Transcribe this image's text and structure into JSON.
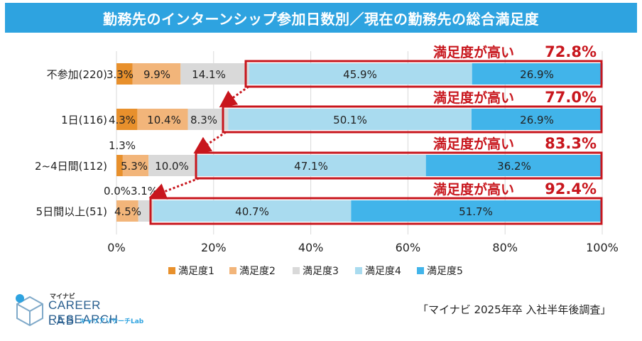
{
  "chart_data": {
    "type": "bar",
    "orientation": "horizontal",
    "stacked": "percent",
    "title": "勤務先のインターンシップ参加日数別／現在の勤務先の総合満足度",
    "categories": [
      "不参加(220)",
      "1日(116)",
      "2~4日間(112)",
      "5日間以上(51)"
    ],
    "series": [
      {
        "name": "満足度1",
        "color": "#e8902c",
        "values": [
          3.3,
          4.3,
          1.3,
          0.0
        ],
        "labels": [
          "3.3%",
          "4.3%",
          "1.3%",
          "0.0%"
        ]
      },
      {
        "name": "満足度2",
        "color": "#f2b57a",
        "values": [
          9.9,
          10.4,
          5.3,
          4.5
        ],
        "labels": [
          "9.9%",
          "10.4%",
          "5.3%",
          "4.5%"
        ]
      },
      {
        "name": "満足度3",
        "color": "#d9d9d9",
        "values": [
          14.1,
          8.3,
          10.0,
          3.1
        ],
        "labels": [
          "14.1%",
          "8.3%",
          "10.0%",
          "3.1%"
        ]
      },
      {
        "name": "満足度4",
        "color": "#a9dbef",
        "values": [
          45.9,
          50.1,
          47.1,
          40.7
        ],
        "labels": [
          "45.9%",
          "50.1%",
          "47.1%",
          "40.7%"
        ]
      },
      {
        "name": "満足度5",
        "color": "#41b4ea",
        "values": [
          26.9,
          26.9,
          36.2,
          51.7
        ],
        "labels": [
          "26.9%",
          "26.9%",
          "36.2%",
          "51.7%"
        ]
      }
    ],
    "highlights": [
      {
        "label": "満足度が高い",
        "value": "72.8%"
      },
      {
        "label": "満足度が高い",
        "value": "77.0%"
      },
      {
        "label": "満足度が高い",
        "value": "83.3%"
      },
      {
        "label": "満足度が高い",
        "value": "92.4%"
      }
    ],
    "xlim": [
      0,
      100
    ],
    "xticks": [
      "0%",
      "20%",
      "40%",
      "60%",
      "80%",
      "100%"
    ],
    "gridlines": true,
    "legend_position": "bottom"
  },
  "source": "「マイナビ 2025年卒 入社半年後調査」",
  "logo": {
    "brand": "マイナビ",
    "line1": "CAREER RESEARCH",
    "line2": "LAB",
    "line3": "キャリアリサーチLab"
  },
  "colors": {
    "accent": "#2ea3e0",
    "highlight": "#c8161d"
  }
}
